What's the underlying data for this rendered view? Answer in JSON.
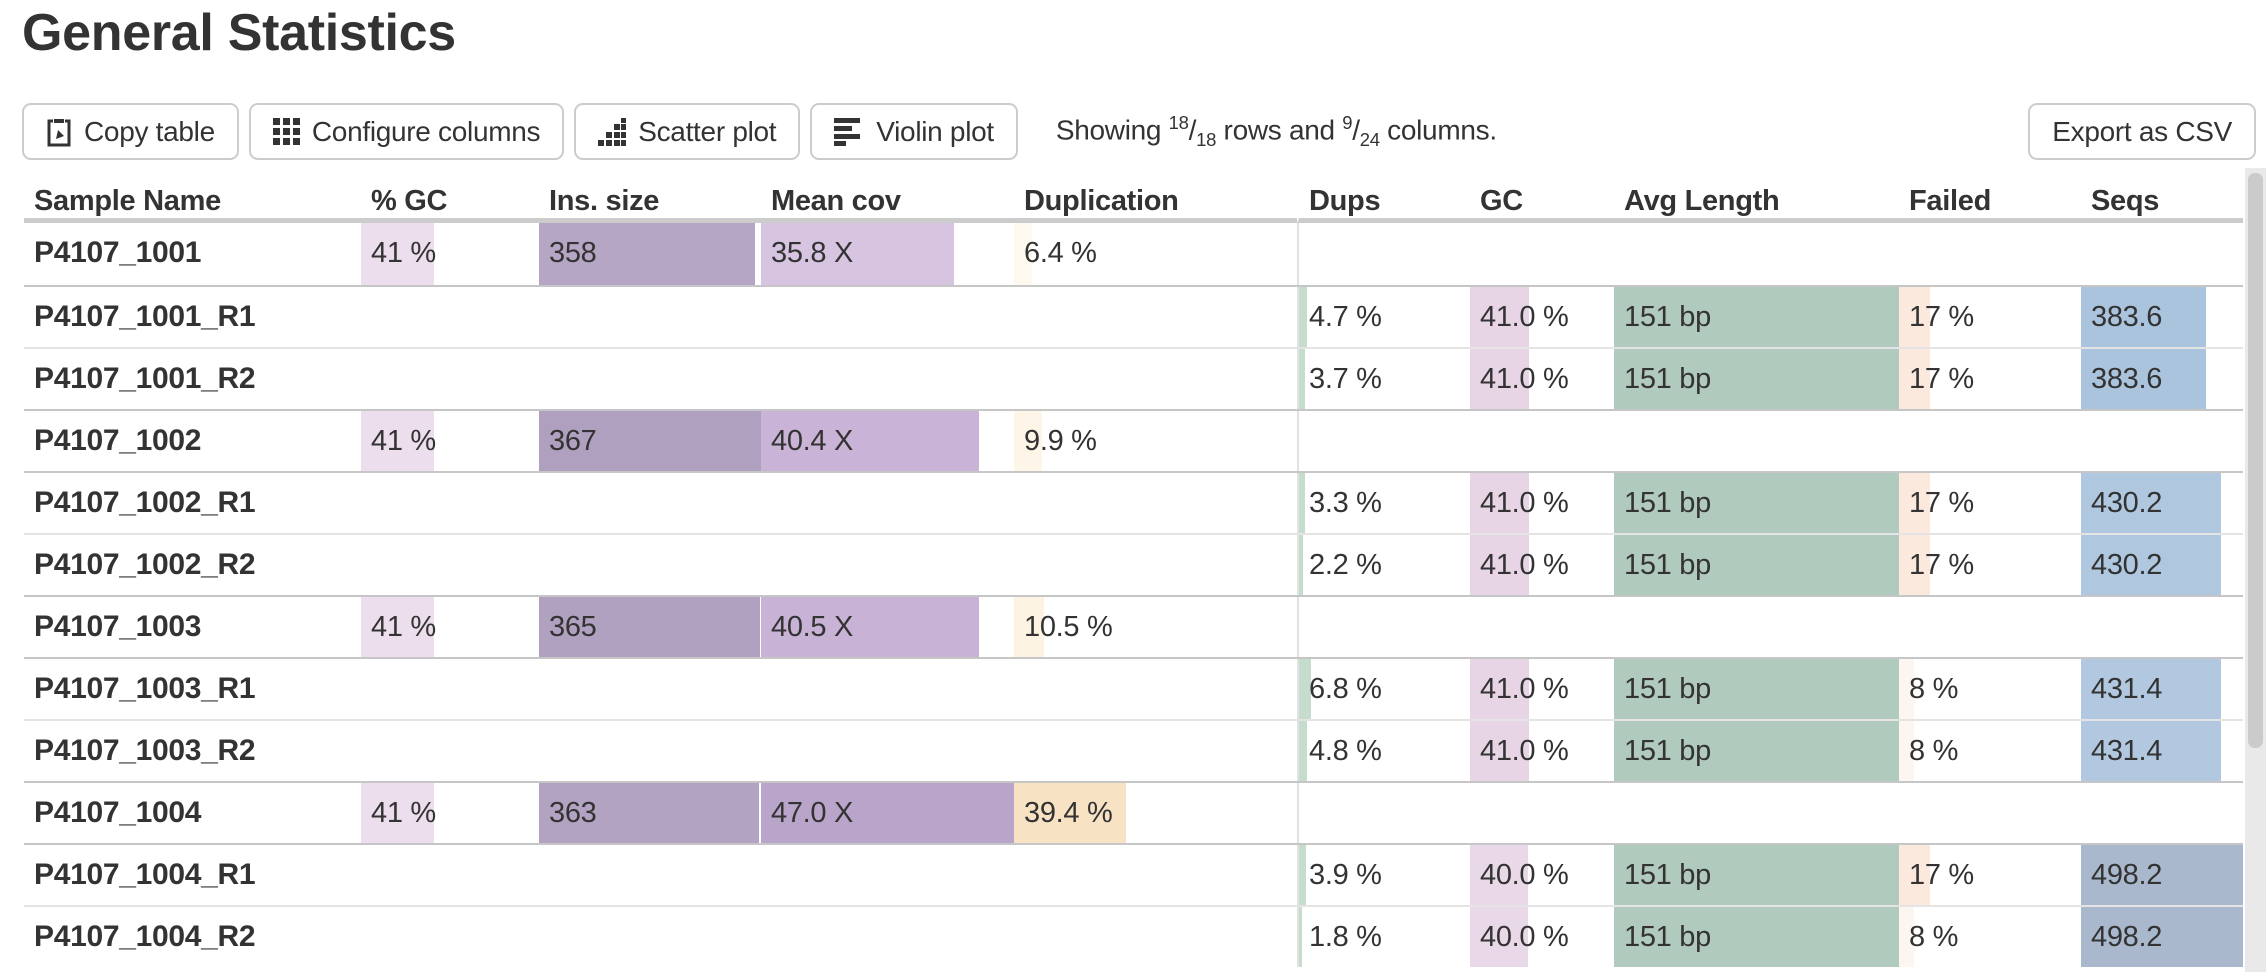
{
  "page": {
    "title": "General Statistics"
  },
  "toolbar": {
    "buttons": [
      {
        "id": "copy-table",
        "label": "Copy table",
        "icon": "clipboard-icon"
      },
      {
        "id": "configure-columns",
        "label": "Configure columns",
        "icon": "grid-icon"
      },
      {
        "id": "scatter-plot",
        "label": "Scatter plot",
        "icon": "scatter-icon"
      },
      {
        "id": "violin-plot",
        "label": "Violin plot",
        "icon": "violin-bars-icon"
      }
    ],
    "export_label": "Export as CSV",
    "showing": {
      "prefix": "Showing",
      "rows_shown": "18",
      "rows_total": "18",
      "mid": "rows and",
      "cols_shown": "9",
      "cols_total": "24",
      "suffix": "columns."
    }
  },
  "table": {
    "columns": [
      {
        "id": "sample",
        "label": "Sample Name"
      },
      {
        "id": "gc_pct",
        "label": "% GC"
      },
      {
        "id": "ins_size",
        "label": "Ins. size"
      },
      {
        "id": "mean_cov",
        "label": "Mean cov"
      },
      {
        "id": "duplication",
        "label": "Duplication"
      },
      {
        "id": "dups",
        "label": "Dups"
      },
      {
        "id": "gc",
        "label": "GC"
      },
      {
        "id": "avg_length",
        "label": "Avg Length"
      },
      {
        "id": "failed",
        "label": "Failed"
      },
      {
        "id": "seqs",
        "label": "Seqs"
      }
    ],
    "rows": [
      {
        "sample": "P4107_1001",
        "group_start": false,
        "cells": {
          "gc_pct": {
            "text": "41 %",
            "pct": 41,
            "color": "#ecdeec"
          },
          "ins_size": {
            "text": "358",
            "pct": 97.5,
            "color": "#b6a6c5"
          },
          "mean_cov": {
            "text": "35.8 X",
            "pct": 76.2,
            "color": "#d6c4e1"
          },
          "duplication": {
            "text": "6.4 %",
            "pct": 6.4,
            "color": "#fdf9ee"
          }
        }
      },
      {
        "sample": "P4107_1001_R1",
        "group_start": true,
        "cells": {
          "dups": {
            "text": "4.7 %",
            "pct": 4.7,
            "color": "#c6dccd"
          },
          "gc": {
            "text": "41.0 %",
            "pct": 41,
            "color": "#e7d5e6"
          },
          "avg_length": {
            "text": "151 bp",
            "pct": 100,
            "color": "#b0cabe"
          },
          "failed": {
            "text": "17 %",
            "pct": 17,
            "color": "#fbe9dd"
          },
          "seqs": {
            "text": "383.6",
            "pct": 77,
            "color": "#abc4de"
          }
        }
      },
      {
        "sample": "P4107_1001_R2",
        "group_start": false,
        "cells": {
          "dups": {
            "text": "3.7 %",
            "pct": 3.7,
            "color": "#c6dccd"
          },
          "gc": {
            "text": "41.0 %",
            "pct": 41,
            "color": "#e7d5e6"
          },
          "avg_length": {
            "text": "151 bp",
            "pct": 100,
            "color": "#b0cabe"
          },
          "failed": {
            "text": "17 %",
            "pct": 17,
            "color": "#fbe9dd"
          },
          "seqs": {
            "text": "383.6",
            "pct": 77,
            "color": "#abc4de"
          }
        }
      },
      {
        "sample": "P4107_1002",
        "group_start": true,
        "cells": {
          "gc_pct": {
            "text": "41 %",
            "pct": 41,
            "color": "#ecdeec"
          },
          "ins_size": {
            "text": "367",
            "pct": 100,
            "color": "#b0a0c0"
          },
          "mean_cov": {
            "text": "40.4 X",
            "pct": 86,
            "color": "#c9b3d7"
          },
          "duplication": {
            "text": "9.9 %",
            "pct": 9.9,
            "color": "#fdf5e7"
          }
        }
      },
      {
        "sample": "P4107_1002_R1",
        "group_start": true,
        "cells": {
          "dups": {
            "text": "3.3 %",
            "pct": 3.3,
            "color": "#c6dccd"
          },
          "gc": {
            "text": "41.0 %",
            "pct": 41,
            "color": "#e7d5e6"
          },
          "avg_length": {
            "text": "151 bp",
            "pct": 100,
            "color": "#b0cabe"
          },
          "failed": {
            "text": "17 %",
            "pct": 17,
            "color": "#fbe9dd"
          },
          "seqs": {
            "text": "430.2",
            "pct": 86.4,
            "color": "#b0c7e0"
          }
        }
      },
      {
        "sample": "P4107_1002_R2",
        "group_start": false,
        "cells": {
          "dups": {
            "text": "2.2 %",
            "pct": 2.2,
            "color": "#c6dccd"
          },
          "gc": {
            "text": "41.0 %",
            "pct": 41,
            "color": "#e7d5e6"
          },
          "avg_length": {
            "text": "151 bp",
            "pct": 100,
            "color": "#b0cabe"
          },
          "failed": {
            "text": "17 %",
            "pct": 17,
            "color": "#fbe9dd"
          },
          "seqs": {
            "text": "430.2",
            "pct": 86.4,
            "color": "#b0c7e0"
          }
        }
      },
      {
        "sample": "P4107_1003",
        "group_start": true,
        "cells": {
          "gc_pct": {
            "text": "41 %",
            "pct": 41,
            "color": "#ecdeec"
          },
          "ins_size": {
            "text": "365",
            "pct": 99.5,
            "color": "#b1a1c1"
          },
          "mean_cov": {
            "text": "40.5 X",
            "pct": 86.2,
            "color": "#c8b2d6"
          },
          "duplication": {
            "text": "10.5 %",
            "pct": 10.5,
            "color": "#fcf3e2"
          }
        }
      },
      {
        "sample": "P4107_1003_R1",
        "group_start": true,
        "cells": {
          "dups": {
            "text": "6.8 %",
            "pct": 6.8,
            "color": "#c6dccd"
          },
          "gc": {
            "text": "41.0 %",
            "pct": 41,
            "color": "#e7d5e6"
          },
          "avg_length": {
            "text": "151 bp",
            "pct": 100,
            "color": "#b0cabe"
          },
          "failed": {
            "text": "8 %",
            "pct": 8,
            "color": "#fdf6f0"
          },
          "seqs": {
            "text": "431.4",
            "pct": 86.6,
            "color": "#b2c8e0"
          }
        }
      },
      {
        "sample": "P4107_1003_R2",
        "group_start": false,
        "cells": {
          "dups": {
            "text": "4.8 %",
            "pct": 4.8,
            "color": "#c6dccd"
          },
          "gc": {
            "text": "41.0 %",
            "pct": 41,
            "color": "#e7d5e6"
          },
          "avg_length": {
            "text": "151 bp",
            "pct": 100,
            "color": "#b0cabe"
          },
          "failed": {
            "text": "8 %",
            "pct": 8,
            "color": "#fdf6f0"
          },
          "seqs": {
            "text": "431.4",
            "pct": 86.6,
            "color": "#b2c8e0"
          }
        }
      },
      {
        "sample": "P4107_1004",
        "group_start": true,
        "cells": {
          "gc_pct": {
            "text": "41 %",
            "pct": 41,
            "color": "#ecdeec"
          },
          "ins_size": {
            "text": "363",
            "pct": 98.9,
            "color": "#b3a3c3"
          },
          "mean_cov": {
            "text": "47.0 X",
            "pct": 100,
            "color": "#b8a5c9"
          },
          "duplication": {
            "text": "39.4 %",
            "pct": 39.4,
            "color": "#f8e2c4"
          }
        }
      },
      {
        "sample": "P4107_1004_R1",
        "group_start": true,
        "cells": {
          "dups": {
            "text": "3.9 %",
            "pct": 3.9,
            "color": "#c6dccd"
          },
          "gc": {
            "text": "40.0 %",
            "pct": 40,
            "color": "#e9d8e7"
          },
          "avg_length": {
            "text": "151 bp",
            "pct": 100,
            "color": "#b0cabe"
          },
          "failed": {
            "text": "17 %",
            "pct": 17,
            "color": "#fbe9dd"
          },
          "seqs": {
            "text": "498.2",
            "pct": 100,
            "color": "#a9b8cc"
          }
        }
      },
      {
        "sample": "P4107_1004_R2",
        "group_start": false,
        "cells": {
          "dups": {
            "text": "1.8 %",
            "pct": 1.8,
            "color": "#c6dccd"
          },
          "gc": {
            "text": "40.0 %",
            "pct": 40,
            "color": "#e9d8e7"
          },
          "avg_length": {
            "text": "151 bp",
            "pct": 100,
            "color": "#b0cabe"
          },
          "failed": {
            "text": "8 %",
            "pct": 8,
            "color": "#fdf6f0"
          },
          "seqs": {
            "text": "498.2",
            "pct": 100,
            "color": "#a9b8cc"
          }
        }
      }
    ]
  }
}
